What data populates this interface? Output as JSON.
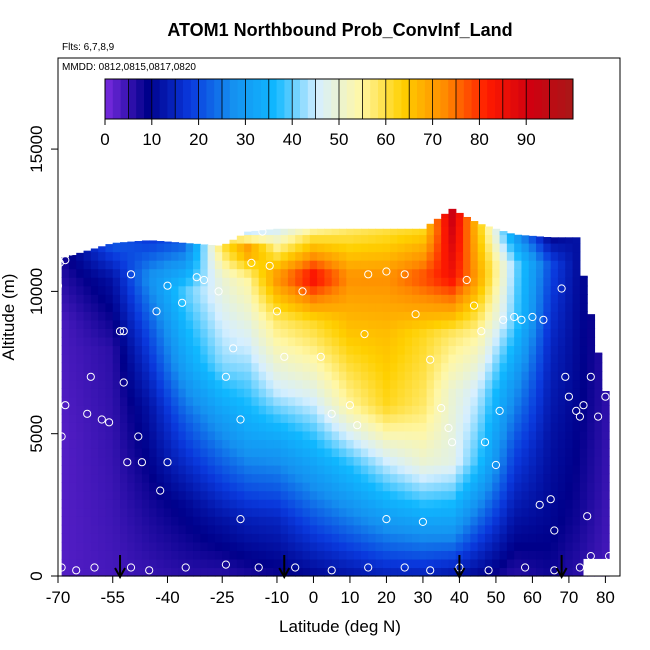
{
  "chart_data": {
    "type": "heatmap",
    "title": "ATOM1 Northbound Prob_ConvInf_Land",
    "flights_note": "Flts: 6,7,8,9",
    "dates_note": "MMDD: 0812,0815,0817,0820",
    "xlabel": "Latitude (deg N)",
    "ylabel": "Altitude (m)",
    "xlim": [
      -70,
      84
    ],
    "ylim": [
      0,
      18200
    ],
    "xticks": [
      -70,
      -55,
      -40,
      -25,
      -10,
      0,
      10,
      20,
      30,
      40,
      50,
      60,
      70,
      80
    ],
    "xtick_labels": [
      "-70",
      "-55",
      "-40",
      "-25",
      "-10",
      "0",
      "10",
      "20",
      "30",
      "40",
      "50",
      "60",
      "70",
      "80"
    ],
    "yticks": [
      0,
      5000,
      10000,
      15000
    ],
    "ytick_labels": [
      "0",
      "5000",
      "10000",
      "15000"
    ],
    "colorbar": {
      "range": [
        0,
        100
      ],
      "ticks": [
        0,
        10,
        20,
        30,
        40,
        50,
        60,
        70,
        80,
        90
      ],
      "tick_labels": [
        "0",
        "10",
        "20",
        "30",
        "40",
        "50",
        "60",
        "70",
        "80",
        "90"
      ],
      "colors": [
        "#7a2be0",
        "#00008a",
        "#0a39dd",
        "#1590f0",
        "#10b8ff",
        "#d6efff",
        "#fff7a6",
        "#ffd000",
        "#ff8a00",
        "#ff1a00",
        "#d00010",
        "#a81818"
      ]
    },
    "field_profiles": [
      {
        "lat": -68,
        "top": 11200,
        "pts": [
          [
            0,
            3
          ],
          [
            5000,
            3
          ],
          [
            9000,
            4
          ],
          [
            11200,
            8
          ]
        ]
      },
      {
        "lat": -55,
        "top": 11700,
        "pts": [
          [
            0,
            4
          ],
          [
            4000,
            5
          ],
          [
            8000,
            6
          ],
          [
            10500,
            12
          ],
          [
            11700,
            22
          ]
        ]
      },
      {
        "lat": -45,
        "top": 11800,
        "pts": [
          [
            0,
            5
          ],
          [
            3000,
            8
          ],
          [
            6000,
            12
          ],
          [
            8500,
            20
          ],
          [
            10500,
            28
          ],
          [
            11800,
            18
          ]
        ]
      },
      {
        "lat": -35,
        "top": 11700,
        "pts": [
          [
            0,
            6
          ],
          [
            2500,
            10
          ],
          [
            5500,
            22
          ],
          [
            7500,
            32
          ],
          [
            10000,
            40
          ],
          [
            11700,
            22
          ]
        ]
      },
      {
        "lat": -25,
        "top": 11600,
        "pts": [
          [
            0,
            6
          ],
          [
            2000,
            12
          ],
          [
            5500,
            30
          ],
          [
            7500,
            42
          ],
          [
            10500,
            50
          ],
          [
            11600,
            60
          ]
        ]
      },
      {
        "lat": -18,
        "top": 12100,
        "pts": [
          [
            0,
            7
          ],
          [
            2000,
            14
          ],
          [
            5000,
            32
          ],
          [
            8000,
            45
          ],
          [
            10500,
            55
          ],
          [
            11500,
            72
          ],
          [
            12100,
            45
          ]
        ]
      },
      {
        "lat": -10,
        "top": 12200,
        "pts": [
          [
            0,
            8
          ],
          [
            2000,
            15
          ],
          [
            4500,
            30
          ],
          [
            6500,
            45
          ],
          [
            9000,
            58
          ],
          [
            10500,
            72
          ],
          [
            12200,
            46
          ]
        ]
      },
      {
        "lat": 0,
        "top": 12200,
        "pts": [
          [
            0,
            10
          ],
          [
            1500,
            18
          ],
          [
            4000,
            32
          ],
          [
            6500,
            48
          ],
          [
            9000,
            62
          ],
          [
            10500,
            85
          ],
          [
            12200,
            55
          ]
        ]
      },
      {
        "lat": 10,
        "top": 12200,
        "pts": [
          [
            0,
            12
          ],
          [
            1500,
            22
          ],
          [
            4000,
            38
          ],
          [
            6000,
            55
          ],
          [
            8500,
            65
          ],
          [
            10500,
            72
          ],
          [
            12200,
            58
          ]
        ]
      },
      {
        "lat": 20,
        "top": 12200,
        "pts": [
          [
            0,
            14
          ],
          [
            1500,
            26
          ],
          [
            4000,
            45
          ],
          [
            6000,
            62
          ],
          [
            8500,
            66
          ],
          [
            10500,
            72
          ],
          [
            12200,
            60
          ]
        ]
      },
      {
        "lat": 30,
        "top": 12200,
        "pts": [
          [
            0,
            14
          ],
          [
            1500,
            28
          ],
          [
            4000,
            50
          ],
          [
            6000,
            58
          ],
          [
            8500,
            62
          ],
          [
            10500,
            78
          ],
          [
            12200,
            62
          ]
        ]
      },
      {
        "lat": 38,
        "top": 12900,
        "pts": [
          [
            0,
            12
          ],
          [
            1500,
            28
          ],
          [
            4000,
            48
          ],
          [
            6500,
            50
          ],
          [
            8500,
            58
          ],
          [
            10500,
            84
          ],
          [
            12900,
            92
          ]
        ]
      },
      {
        "lat": 45,
        "top": 12400,
        "pts": [
          [
            0,
            10
          ],
          [
            1500,
            20
          ],
          [
            4000,
            38
          ],
          [
            6500,
            45
          ],
          [
            8500,
            55
          ],
          [
            10500,
            70
          ],
          [
            12400,
            65
          ]
        ]
      },
      {
        "lat": 55,
        "top": 12000,
        "pts": [
          [
            0,
            6
          ],
          [
            2000,
            12
          ],
          [
            4500,
            20
          ],
          [
            7000,
            30
          ],
          [
            9000,
            40
          ],
          [
            11000,
            42
          ],
          [
            12000,
            30
          ]
        ]
      },
      {
        "lat": 65,
        "top": 11900,
        "pts": [
          [
            0,
            8
          ],
          [
            2000,
            10
          ],
          [
            5000,
            12
          ],
          [
            8000,
            15
          ],
          [
            11000,
            20
          ],
          [
            11900,
            10
          ]
        ]
      },
      {
        "lat": 72,
        "top": 11900,
        "pts": [
          [
            0,
            6
          ],
          [
            2000,
            8
          ],
          [
            6000,
            10
          ],
          [
            11900,
            12
          ]
        ]
      },
      {
        "lat": 80,
        "top": 6500,
        "pts": [
          [
            0,
            4
          ],
          [
            3000,
            5
          ],
          [
            6500,
            6
          ]
        ]
      }
    ],
    "sample_points": [
      [
        -70,
        10200
      ],
      [
        -69.5,
        11000
      ],
      [
        -68,
        11100
      ],
      [
        -66.5,
        11400
      ],
      [
        -64,
        11700
      ],
      [
        -68,
        6000
      ],
      [
        -69,
        4900
      ],
      [
        -69,
        300
      ],
      [
        -62,
        5700
      ],
      [
        -61,
        7000
      ],
      [
        -58,
        5500
      ],
      [
        -56,
        5400
      ],
      [
        -52,
        8600
      ],
      [
        -51,
        4000
      ],
      [
        -48,
        4900
      ],
      [
        -47,
        4000
      ],
      [
        -52,
        6800
      ],
      [
        -53,
        8600
      ],
      [
        -50,
        10600
      ],
      [
        -43,
        9300
      ],
      [
        -40,
        10200
      ],
      [
        -36,
        9600
      ],
      [
        -32,
        10500
      ],
      [
        -30,
        10400
      ],
      [
        -26,
        10000
      ],
      [
        -24,
        7000
      ],
      [
        -22,
        8000
      ],
      [
        -20,
        5500
      ],
      [
        -17,
        11000
      ],
      [
        -14,
        12100
      ],
      [
        -12,
        10900
      ],
      [
        -10,
        9300
      ],
      [
        -8,
        7700
      ],
      [
        -3,
        10000
      ],
      [
        2,
        7700
      ],
      [
        5,
        5700
      ],
      [
        10,
        6000
      ],
      [
        12,
        5300
      ],
      [
        14,
        8500
      ],
      [
        15,
        10600
      ],
      [
        20,
        10700
      ],
      [
        25,
        10600
      ],
      [
        28,
        9200
      ],
      [
        32,
        7600
      ],
      [
        35,
        5900
      ],
      [
        37,
        5200
      ],
      [
        38,
        4700
      ],
      [
        42,
        10400
      ],
      [
        44,
        9500
      ],
      [
        46,
        8600
      ],
      [
        47,
        4700
      ],
      [
        50,
        3900
      ],
      [
        51,
        5800
      ],
      [
        52,
        9000
      ],
      [
        55,
        9100
      ],
      [
        57,
        9000
      ],
      [
        60,
        9100
      ],
      [
        63,
        9000
      ],
      [
        68,
        10100
      ],
      [
        70,
        6300
      ],
      [
        69,
        7000
      ],
      [
        72,
        5800
      ],
      [
        73,
        5600
      ],
      [
        74,
        6000
      ],
      [
        75,
        2100
      ],
      [
        76,
        7000
      ],
      [
        78,
        5600
      ],
      [
        80,
        6300
      ],
      [
        81,
        700
      ],
      [
        62,
        2500
      ],
      [
        65,
        2700
      ],
      [
        66,
        1600
      ],
      [
        30,
        1900
      ],
      [
        20,
        2000
      ],
      [
        -42,
        3000
      ],
      [
        -40,
        4000
      ],
      [
        -20,
        2000
      ],
      [
        -65,
        200
      ],
      [
        -60,
        300
      ],
      [
        -50,
        300
      ],
      [
        -45,
        200
      ],
      [
        -35,
        300
      ],
      [
        -24,
        400
      ],
      [
        -15,
        300
      ],
      [
        -5,
        300
      ],
      [
        5,
        200
      ],
      [
        15,
        300
      ],
      [
        25,
        300
      ],
      [
        32,
        200
      ],
      [
        40,
        300
      ],
      [
        48,
        200
      ],
      [
        58,
        300
      ],
      [
        66,
        200
      ],
      [
        73,
        300
      ],
      [
        76,
        700
      ]
    ],
    "flight_markers": [
      -53,
      -8,
      40,
      68
    ],
    "white_out_region": {
      "lat_min": 74,
      "lat_max": 84,
      "alt_min": 0,
      "alt_max": 600
    }
  }
}
